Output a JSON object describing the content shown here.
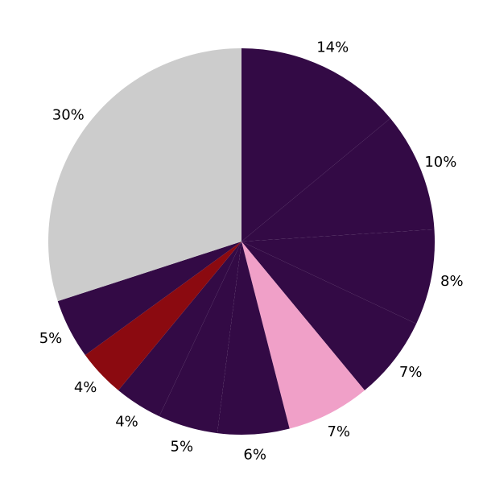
{
  "chart_data": {
    "type": "pie",
    "values": [
      14,
      10,
      8,
      7,
      7,
      6,
      5,
      4,
      4,
      5,
      30
    ],
    "value_labels": [
      "14%",
      "10%",
      "8%",
      "7%",
      "7%",
      "6%",
      "5%",
      "4%",
      "4%",
      "5%",
      "30%"
    ],
    "colors": [
      "#330a45",
      "#330a45",
      "#330a45",
      "#330a45",
      "#f0a0c8",
      "#330a45",
      "#330a45",
      "#330a45",
      "#8b0a10",
      "#330a45",
      "#cccccc"
    ],
    "start_angle": 90,
    "direction": "clockwise"
  }
}
